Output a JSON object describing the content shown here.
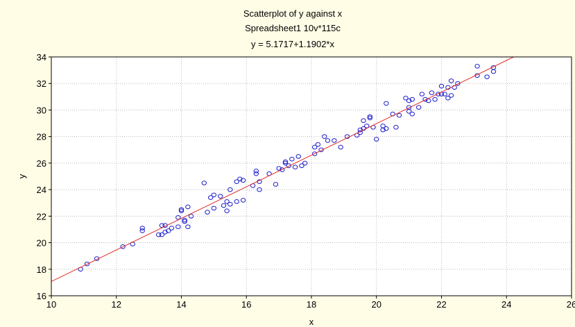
{
  "chart_data": {
    "type": "scatter",
    "title": "Scatterplot of y against x",
    "subtitle": "Spreadsheet1 10v*115c",
    "equation": "y = 5.1717+1.1902*x",
    "xlabel": "x",
    "ylabel": "y",
    "xlim": [
      10,
      26
    ],
    "ylim": [
      16,
      34
    ],
    "xticks": [
      "10",
      "12",
      "14",
      "16",
      "18",
      "20",
      "22",
      "24",
      "26"
    ],
    "yticks": [
      "16",
      "18",
      "20",
      "22",
      "24",
      "26",
      "28",
      "30",
      "32",
      "34"
    ],
    "grid": true,
    "fit_line": {
      "intercept": 5.1717,
      "slope": 1.1902,
      "color": "#e0302a"
    },
    "marker_color": "#1a1acc",
    "points": [
      [
        10.9,
        18.0
      ],
      [
        11.1,
        18.4
      ],
      [
        11.4,
        18.8
      ],
      [
        12.2,
        19.7
      ],
      [
        12.5,
        19.9
      ],
      [
        12.8,
        20.9
      ],
      [
        12.8,
        21.1
      ],
      [
        13.3,
        20.6
      ],
      [
        13.4,
        20.6
      ],
      [
        13.4,
        21.3
      ],
      [
        13.5,
        20.8
      ],
      [
        13.5,
        21.3
      ],
      [
        13.6,
        20.9
      ],
      [
        13.7,
        21.1
      ],
      [
        13.9,
        21.9
      ],
      [
        13.9,
        21.2
      ],
      [
        14.0,
        22.4
      ],
      [
        14.0,
        22.5
      ],
      [
        14.1,
        21.6
      ],
      [
        14.1,
        21.7
      ],
      [
        14.2,
        22.7
      ],
      [
        14.2,
        21.2
      ],
      [
        14.3,
        22.0
      ],
      [
        14.7,
        24.5
      ],
      [
        14.8,
        22.3
      ],
      [
        14.9,
        23.4
      ],
      [
        15.0,
        23.6
      ],
      [
        15.0,
        22.6
      ],
      [
        15.2,
        23.5
      ],
      [
        15.3,
        22.8
      ],
      [
        15.4,
        23.1
      ],
      [
        15.4,
        22.4
      ],
      [
        15.5,
        22.9
      ],
      [
        15.5,
        24.0
      ],
      [
        15.7,
        24.6
      ],
      [
        15.7,
        23.1
      ],
      [
        15.8,
        24.8
      ],
      [
        15.9,
        24.7
      ],
      [
        15.9,
        23.2
      ],
      [
        16.2,
        24.3
      ],
      [
        16.3,
        25.4
      ],
      [
        16.3,
        25.2
      ],
      [
        16.4,
        24.0
      ],
      [
        16.4,
        24.6
      ],
      [
        16.7,
        25.2
      ],
      [
        16.9,
        24.4
      ],
      [
        17.0,
        25.6
      ],
      [
        17.1,
        25.5
      ],
      [
        17.2,
        26.0
      ],
      [
        17.2,
        26.1
      ],
      [
        17.3,
        25.8
      ],
      [
        17.4,
        26.3
      ],
      [
        17.5,
        25.7
      ],
      [
        17.6,
        26.5
      ],
      [
        17.7,
        25.8
      ],
      [
        17.8,
        26.0
      ],
      [
        18.1,
        26.7
      ],
      [
        18.1,
        27.2
      ],
      [
        18.2,
        27.4
      ],
      [
        18.3,
        27.0
      ],
      [
        18.4,
        28.0
      ],
      [
        18.5,
        27.7
      ],
      [
        18.7,
        27.7
      ],
      [
        18.9,
        27.2
      ],
      [
        19.1,
        28.0
      ],
      [
        19.4,
        28.1
      ],
      [
        19.5,
        28.3
      ],
      [
        19.5,
        28.5
      ],
      [
        19.6,
        29.2
      ],
      [
        19.6,
        28.6
      ],
      [
        19.7,
        28.8
      ],
      [
        19.8,
        29.4
      ],
      [
        19.8,
        29.5
      ],
      [
        19.9,
        28.7
      ],
      [
        20.0,
        27.8
      ],
      [
        20.2,
        28.5
      ],
      [
        20.2,
        28.8
      ],
      [
        20.3,
        28.6
      ],
      [
        20.3,
        30.5
      ],
      [
        20.5,
        29.7
      ],
      [
        20.6,
        28.7
      ],
      [
        20.7,
        29.6
      ],
      [
        20.9,
        30.9
      ],
      [
        21.0,
        29.9
      ],
      [
        21.0,
        30.2
      ],
      [
        21.0,
        30.7
      ],
      [
        21.1,
        29.7
      ],
      [
        21.1,
        30.8
      ],
      [
        21.3,
        30.2
      ],
      [
        21.4,
        31.2
      ],
      [
        21.5,
        30.8
      ],
      [
        21.6,
        30.7
      ],
      [
        21.7,
        31.3
      ],
      [
        21.8,
        30.8
      ],
      [
        21.9,
        31.2
      ],
      [
        22.0,
        31.2
      ],
      [
        22.0,
        31.8
      ],
      [
        22.1,
        31.2
      ],
      [
        22.2,
        31.7
      ],
      [
        22.2,
        30.9
      ],
      [
        22.3,
        32.2
      ],
      [
        22.3,
        31.1
      ],
      [
        22.4,
        31.7
      ],
      [
        22.5,
        32.0
      ],
      [
        23.1,
        33.3
      ],
      [
        23.1,
        32.6
      ],
      [
        23.4,
        32.5
      ],
      [
        23.6,
        32.9
      ],
      [
        23.6,
        33.2
      ]
    ]
  }
}
